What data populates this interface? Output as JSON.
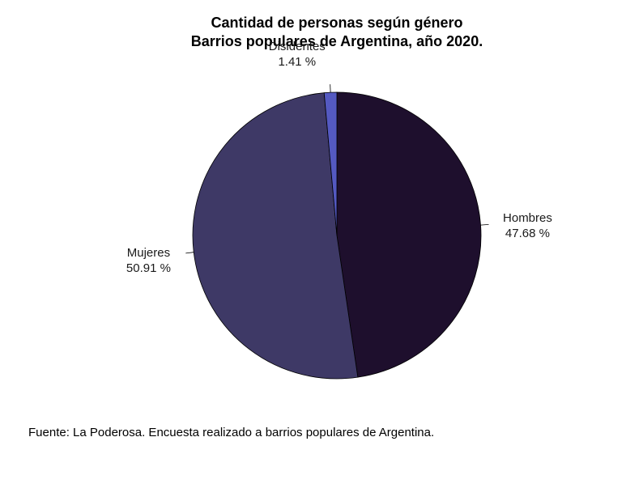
{
  "chart_data": {
    "type": "pie",
    "title": "Cantidad de personas según género",
    "subtitle": "Barrios populares de Argentina, año 2020.",
    "slices": [
      {
        "label": "Hombres",
        "value": 47.68,
        "display": "47.68 %",
        "color": "#1e0f2d"
      },
      {
        "label": "Mujeres",
        "value": 50.91,
        "display": "50.91 %",
        "color": "#3e3966"
      },
      {
        "label": "Disidentes",
        "value": 1.41,
        "display": "1.41 %",
        "color": "#5459c1"
      }
    ],
    "start_angle_deg": 90,
    "direction": "clockwise",
    "legend": "none"
  },
  "source": "Fuente: La Poderosa. Encuesta realizado a barrios populares de Argentina."
}
